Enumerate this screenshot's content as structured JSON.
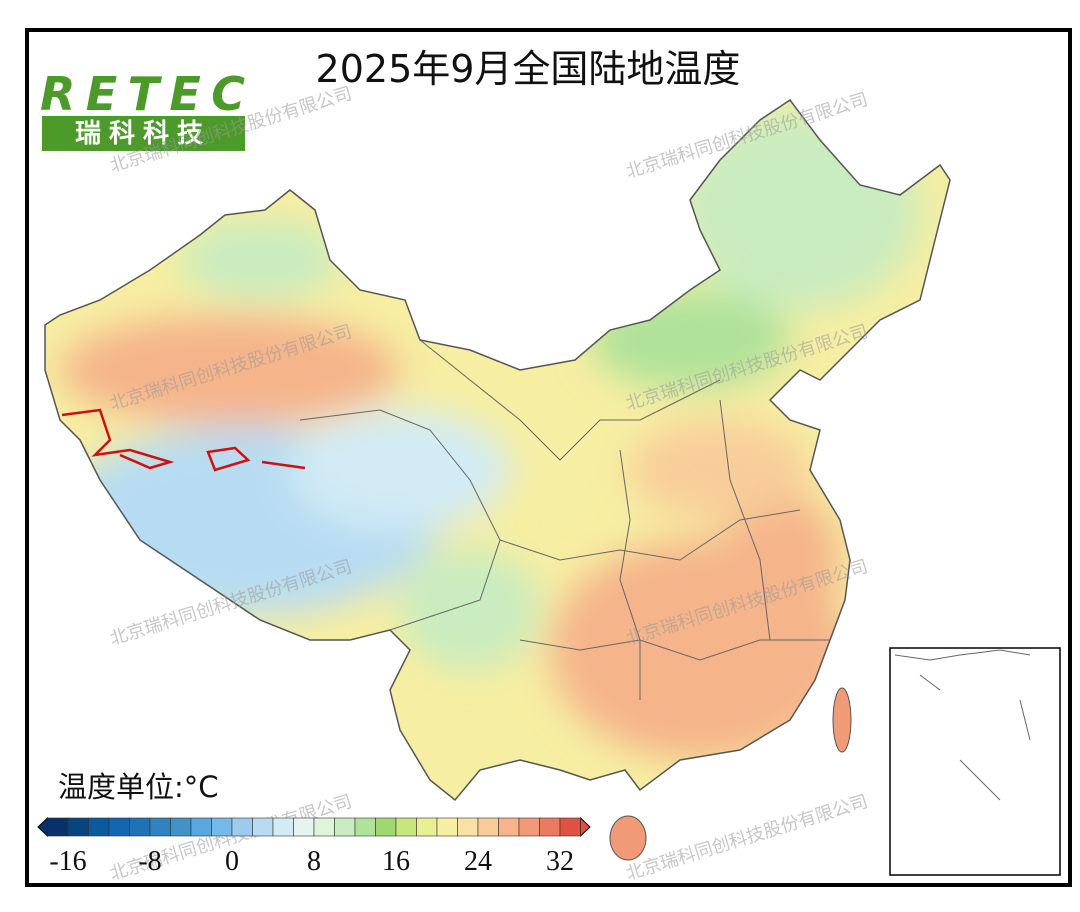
{
  "header": {
    "title": "2025年9月全国陆地温度"
  },
  "logo": {
    "brand": "RETEC",
    "name": "瑞科科技"
  },
  "watermark": "北京瑞科同创科技股份有限公司",
  "legend": {
    "title": "温度单位:°C",
    "range": [
      -18,
      34
    ],
    "colors": [
      "#08306b",
      "#08457e",
      "#0a5a9c",
      "#1466b0",
      "#2171b5",
      "#3182bd",
      "#4292c6",
      "#5aa7dd",
      "#74b9e8",
      "#9ccbee",
      "#b7dcf2",
      "#d2ebf5",
      "#e6f4f1",
      "#e0f3db",
      "#c9ecc0",
      "#b0e29a",
      "#a0d870",
      "#c8e680",
      "#e8ef95",
      "#f6eea2",
      "#f9e0a5",
      "#f8cd9a",
      "#f5b48a",
      "#f09a78",
      "#ea7a60",
      "#e0523f"
    ],
    "ticks": [
      -16,
      -8,
      0,
      8,
      16,
      24,
      32
    ]
  }
}
